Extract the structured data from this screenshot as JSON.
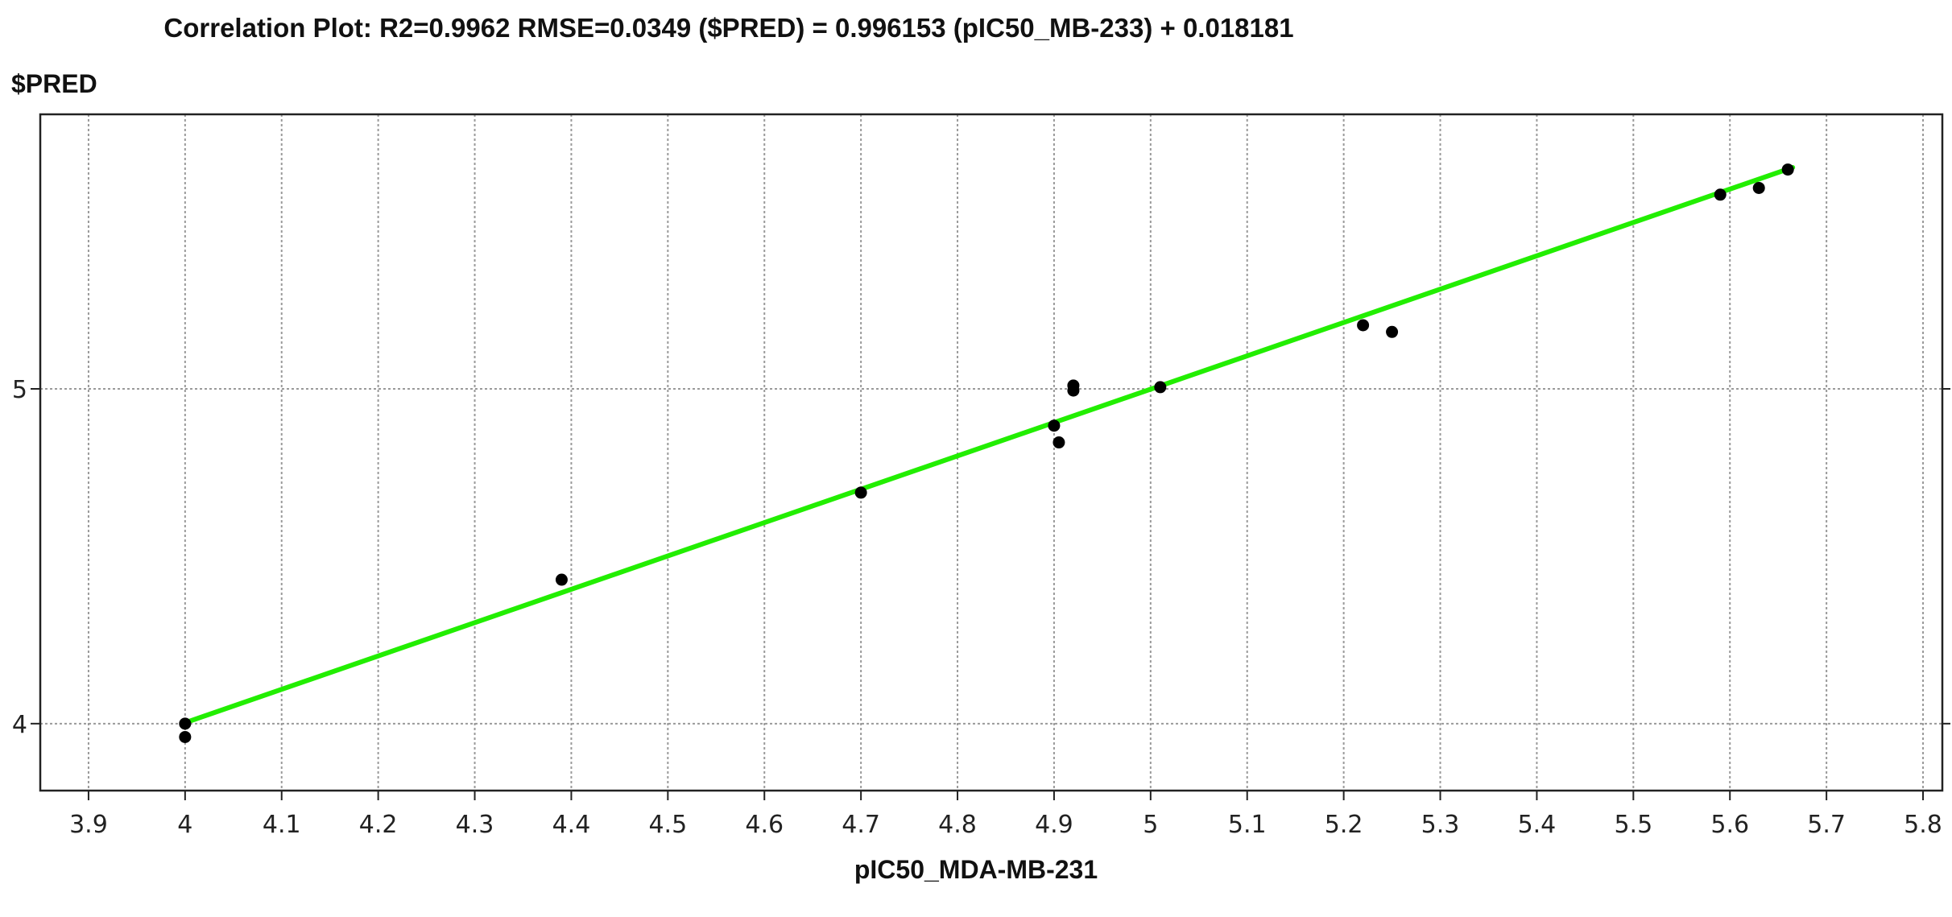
{
  "chart_data": {
    "type": "scatter",
    "title": "Correlation Plot: R2=0.9962  RMSE=0.0349 ($PRED) = 0.996153 (pIC50_MB-233) + 0.018181",
    "xlabel": "pIC50_MDA-MB-231",
    "ylabel": "$PRED",
    "xlim": [
      3.85,
      5.82
    ],
    "ylim": [
      3.8,
      5.82
    ],
    "grid": true,
    "x_ticks": [
      "3.9",
      "4",
      "4.1",
      "4.2",
      "4.3",
      "4.4",
      "4.5",
      "4.6",
      "4.7",
      "4.8",
      "4.9",
      "5",
      "5.1",
      "5.2",
      "5.3",
      "5.4",
      "5.5",
      "5.6",
      "5.7",
      "5.8"
    ],
    "y_ticks": [
      "4",
      "5"
    ],
    "points": [
      {
        "x": 4.0,
        "y": 3.96
      },
      {
        "x": 4.0,
        "y": 4.0
      },
      {
        "x": 4.39,
        "y": 4.43
      },
      {
        "x": 4.7,
        "y": 4.69
      },
      {
        "x": 4.9,
        "y": 4.89
      },
      {
        "x": 4.905,
        "y": 4.84
      },
      {
        "x": 4.92,
        "y": 5.01
      },
      {
        "x": 4.92,
        "y": 4.995
      },
      {
        "x": 5.01,
        "y": 5.005
      },
      {
        "x": 5.22,
        "y": 5.19
      },
      {
        "x": 5.25,
        "y": 5.17
      },
      {
        "x": 5.59,
        "y": 5.58
      },
      {
        "x": 5.63,
        "y": 5.6
      },
      {
        "x": 5.66,
        "y": 5.655
      }
    ],
    "fit_line": {
      "slope": 0.996153,
      "intercept": 0.018181,
      "x_range": [
        4.0,
        5.665
      ],
      "color": "#22ee00"
    },
    "point_color": "#000000"
  }
}
